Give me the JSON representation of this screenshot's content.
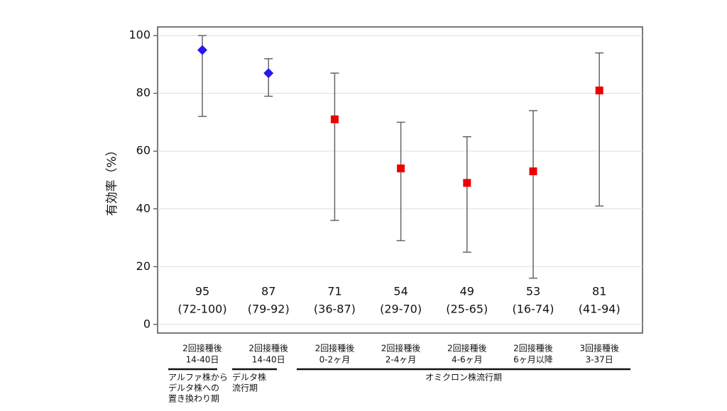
{
  "chart_data": {
    "type": "errorbar",
    "ylabel": "有効率（%）",
    "categories": [
      [
        "2回接種後",
        "14-40日"
      ],
      [
        "2回接種後",
        "14-40日"
      ],
      [
        "2回接種後",
        "0-2ヶ月"
      ],
      [
        "2回接種後",
        "2-4ヶ月"
      ],
      [
        "2回接種後",
        "4-6ヶ月"
      ],
      [
        "2回接種後",
        "6ヶ月以降"
      ],
      [
        "3回接種後",
        "3-37日"
      ]
    ],
    "values": [
      95,
      87,
      71,
      54,
      49,
      53,
      81
    ],
    "lower": [
      72,
      79,
      36,
      29,
      25,
      16,
      41
    ],
    "upper": [
      100,
      92,
      87,
      70,
      65,
      74,
      94
    ],
    "interval_labels": [
      "(72-100)",
      "(79-92)",
      "(36-87)",
      "(29-70)",
      "(25-65)",
      "(16-74)",
      "(41-94)"
    ],
    "colors": [
      "#2a16f0",
      "#2a16f0",
      "#ee0000",
      "#ee0000",
      "#ee0000",
      "#ee0000",
      "#ee0000"
    ],
    "markers": [
      "diamond",
      "diamond",
      "square",
      "square",
      "square",
      "square",
      "square"
    ],
    "groups": [
      [
        "アルファ株から",
        "デルタ株への",
        "置き換わり期"
      ],
      [
        "デルタ株",
        "流行期"
      ],
      [
        "オミクロン株流行期"
      ]
    ],
    "ylim": [
      -3,
      103
    ],
    "yticks": [
      0,
      20,
      40,
      60,
      80,
      100
    ],
    "grid": true
  }
}
